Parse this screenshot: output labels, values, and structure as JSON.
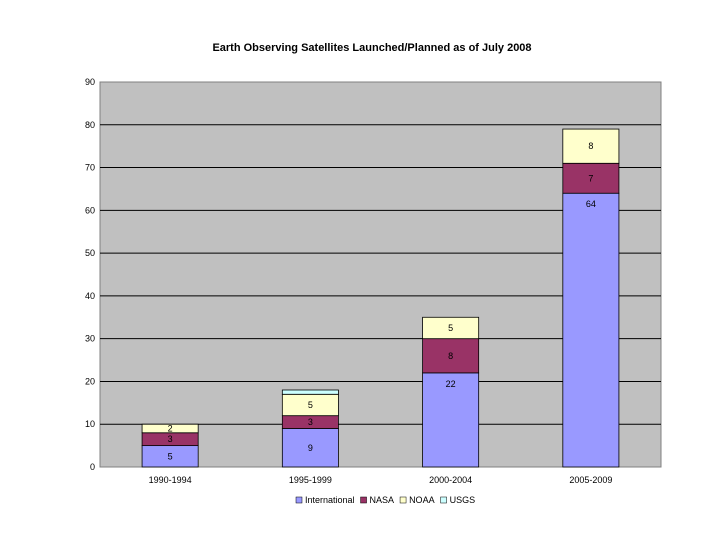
{
  "chart_data": {
    "type": "bar",
    "stacked": true,
    "title": "Earth Observing Satellites Launched/Planned as of July 2008",
    "categories": [
      "1990-1994",
      "1995-1999",
      "2000-2004",
      "2005-2009"
    ],
    "series": [
      {
        "name": "International",
        "color": "#9999ff",
        "values": [
          5,
          9,
          22,
          64
        ],
        "labels": [
          "5",
          "9",
          "22",
          "64"
        ]
      },
      {
        "name": "NASA",
        "color": "#993366",
        "values": [
          3,
          3,
          8,
          7
        ],
        "labels": [
          "3",
          "3",
          "8",
          "7"
        ]
      },
      {
        "name": "NOAA",
        "color": "#ffffcc",
        "values": [
          2,
          5,
          5,
          8
        ],
        "labels": [
          "2",
          "5",
          "5",
          "8"
        ]
      },
      {
        "name": "USGS",
        "color": "#ccffff",
        "values": [
          0,
          1,
          0,
          0
        ],
        "labels": [
          "",
          "",
          "",
          ""
        ]
      }
    ],
    "ylim": [
      0,
      90
    ],
    "yticks": [
      0,
      10,
      20,
      30,
      40,
      50,
      60,
      70,
      80,
      90
    ],
    "xlabel": "",
    "ylabel": "",
    "grid": true,
    "plot_background": "#c0c0c0",
    "legend_position": "bottom"
  }
}
